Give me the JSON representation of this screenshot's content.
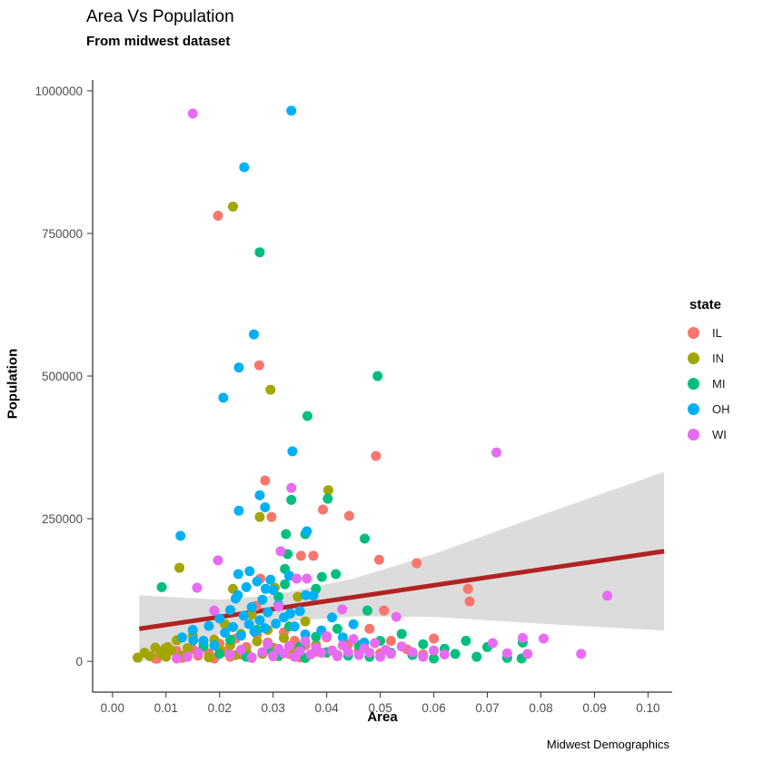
{
  "header": {
    "title": "Area Vs Population",
    "subtitle": "From midwest dataset"
  },
  "caption": "Midwest Demographics",
  "chart_data": {
    "type": "scatter",
    "title": "Area Vs Population",
    "subtitle": "From midwest dataset",
    "caption": "Midwest Demographics",
    "xlabel": "Area",
    "ylabel": "Population",
    "grid": "off",
    "xlim": [
      -0.0037,
      0.104
    ],
    "ylim": [
      -54000,
      1019000
    ],
    "x_ticks": [
      0.0,
      0.01,
      0.02,
      0.03,
      0.04,
      0.05,
      0.06,
      0.07,
      0.08,
      0.09,
      0.1
    ],
    "x_tick_labels": [
      "0.00",
      "0.01",
      "0.02",
      "0.03",
      "0.04",
      "0.05",
      "0.06",
      "0.07",
      "0.08",
      "0.09",
      "0.10"
    ],
    "y_ticks": [
      0,
      250000,
      500000,
      750000,
      1000000
    ],
    "y_tick_labels": [
      "0",
      "250000",
      "500000",
      "750000",
      "1000000"
    ],
    "axis_color": "#000000",
    "tick_label_color": "#4d4d4d",
    "legend": {
      "title": "state",
      "position": "right",
      "entries": [
        {
          "label": "IL",
          "color": "#F8766D"
        },
        {
          "label": "IN",
          "color": "#A3A500"
        },
        {
          "label": "MI",
          "color": "#00BF7D"
        },
        {
          "label": "OH",
          "color": "#00B0F6"
        },
        {
          "label": "WI",
          "color": "#E76BF3"
        }
      ]
    },
    "trend": {
      "type": "linear-smooth",
      "color": "#B22222",
      "width": 5,
      "x": [
        0.005,
        0.103
      ],
      "y": [
        57000,
        193000
      ],
      "ci_color": "#DCDCDC",
      "ci_x": [
        0.005,
        0.02,
        0.03,
        0.045,
        0.06,
        0.08,
        0.103
      ],
      "ci_upper": [
        116000,
        108000,
        116000,
        145000,
        188000,
        256000,
        332000
      ],
      "ci_lower": [
        -2000,
        48000,
        68000,
        79000,
        78000,
        66000,
        54000
      ]
    },
    "point_radius": 5.5,
    "series": [
      {
        "name": "IL",
        "color": "#F8766D",
        "points": [
          [
            0.0197,
            781000
          ],
          [
            0.0274,
            519000
          ],
          [
            0.0492,
            360000
          ],
          [
            0.0285,
            317000
          ],
          [
            0.0393,
            266000
          ],
          [
            0.0442,
            255000
          ],
          [
            0.0297,
            253000
          ],
          [
            0.0352,
            185000
          ],
          [
            0.0375,
            185000
          ],
          [
            0.0498,
            178000
          ],
          [
            0.0568,
            172000
          ],
          [
            0.0276,
            145000
          ],
          [
            0.0664,
            127000
          ],
          [
            0.0667,
            105000
          ],
          [
            0.0268,
            97000
          ],
          [
            0.0507,
            89000
          ],
          [
            0.008,
            5000
          ],
          [
            0.01,
            12000
          ],
          [
            0.012,
            18000
          ],
          [
            0.013,
            6000
          ],
          [
            0.015,
            21000
          ],
          [
            0.016,
            10000
          ],
          [
            0.017,
            35000
          ],
          [
            0.018,
            14000
          ],
          [
            0.019,
            5000
          ],
          [
            0.02,
            31000
          ],
          [
            0.021,
            17000
          ],
          [
            0.022,
            8000
          ],
          [
            0.023,
            40000
          ],
          [
            0.024,
            12000
          ],
          [
            0.025,
            25000
          ],
          [
            0.026,
            6000
          ],
          [
            0.027,
            47000
          ],
          [
            0.028,
            15000
          ],
          [
            0.029,
            33000
          ],
          [
            0.03,
            9000
          ],
          [
            0.031,
            20000
          ],
          [
            0.032,
            51000
          ],
          [
            0.033,
            13000
          ],
          [
            0.034,
            36000
          ],
          [
            0.035,
            7000
          ],
          [
            0.036,
            28000
          ],
          [
            0.038,
            17000
          ],
          [
            0.04,
            42000
          ],
          [
            0.042,
            11000
          ],
          [
            0.044,
            30000
          ],
          [
            0.046,
            19000
          ],
          [
            0.048,
            57000
          ],
          [
            0.05,
            14000
          ],
          [
            0.052,
            36000
          ],
          [
            0.055,
            21000
          ],
          [
            0.058,
            12000
          ],
          [
            0.06,
            40000
          ],
          [
            0.0083,
            4800
          ]
        ]
      },
      {
        "name": "IN",
        "color": "#A3A500",
        "points": [
          [
            0.0225,
            797000
          ],
          [
            0.0295,
            476000
          ],
          [
            0.0403,
            300000
          ],
          [
            0.0275,
            253000
          ],
          [
            0.0125,
            164000
          ],
          [
            0.0303,
            129000
          ],
          [
            0.0225,
            127000
          ],
          [
            0.0346,
            113000
          ],
          [
            0.0047,
            6400
          ],
          [
            0.006,
            15000
          ],
          [
            0.007,
            9000
          ],
          [
            0.008,
            24000
          ],
          [
            0.009,
            13000
          ],
          [
            0.0098,
            22000
          ],
          [
            0.0103,
            25000
          ],
          [
            0.011,
            19000
          ],
          [
            0.012,
            37000
          ],
          [
            0.013,
            10000
          ],
          [
            0.014,
            23000
          ],
          [
            0.015,
            45000
          ],
          [
            0.016,
            16000
          ],
          [
            0.017,
            30000
          ],
          [
            0.018,
            7000
          ],
          [
            0.019,
            38000
          ],
          [
            0.02,
            19000
          ],
          [
            0.021,
            65000
          ],
          [
            0.022,
            28000
          ],
          [
            0.023,
            11000
          ],
          [
            0.024,
            48000
          ],
          [
            0.025,
            17000
          ],
          [
            0.026,
            82000
          ],
          [
            0.027,
            35000
          ],
          [
            0.028,
            13000
          ],
          [
            0.029,
            55000
          ],
          [
            0.03,
            24000
          ],
          [
            0.031,
            9000
          ],
          [
            0.032,
            41000
          ],
          [
            0.034,
            19000
          ],
          [
            0.036,
            70000
          ],
          [
            0.038,
            29000
          ],
          [
            0.04,
            15000
          ],
          [
            0.01,
            8000
          ]
        ]
      },
      {
        "name": "MI",
        "color": "#00BF7D",
        "points": [
          [
            0.0275,
            717000
          ],
          [
            0.0495,
            500000
          ],
          [
            0.0364,
            430000
          ],
          [
            0.0402,
            285000
          ],
          [
            0.0334,
            283000
          ],
          [
            0.0324,
            223000
          ],
          [
            0.036,
            223000
          ],
          [
            0.0471,
            215000
          ],
          [
            0.0327,
            188000
          ],
          [
            0.0322,
            162000
          ],
          [
            0.0417,
            153000
          ],
          [
            0.0391,
            148000
          ],
          [
            0.0322,
            135000
          ],
          [
            0.0092,
            130000
          ],
          [
            0.038,
            127000
          ],
          [
            0.031,
            113000
          ],
          [
            0.0476,
            89000
          ],
          [
            0.017,
            26000
          ],
          [
            0.02,
            13000
          ],
          [
            0.022,
            38000
          ],
          [
            0.025,
            8000
          ],
          [
            0.027,
            55000
          ],
          [
            0.029,
            21000
          ],
          [
            0.031,
            10000
          ],
          [
            0.033,
            61000
          ],
          [
            0.035,
            25000
          ],
          [
            0.036,
            6000
          ],
          [
            0.038,
            43000
          ],
          [
            0.04,
            16000
          ],
          [
            0.042,
            57000
          ],
          [
            0.044,
            10000
          ],
          [
            0.046,
            28000
          ],
          [
            0.048,
            8000
          ],
          [
            0.05,
            36000
          ],
          [
            0.052,
            15000
          ],
          [
            0.054,
            48000
          ],
          [
            0.056,
            11000
          ],
          [
            0.058,
            30000
          ],
          [
            0.06,
            5000
          ],
          [
            0.062,
            22000
          ],
          [
            0.064,
            13000
          ],
          [
            0.066,
            36000
          ],
          [
            0.068,
            8000
          ],
          [
            0.07,
            25000
          ],
          [
            0.0737,
            6000
          ],
          [
            0.0764,
            5000
          ],
          [
            0.0766,
            33000
          ]
        ]
      },
      {
        "name": "OH",
        "color": "#00B0F6",
        "points": [
          [
            0.0334,
            965000
          ],
          [
            0.0246,
            866000
          ],
          [
            0.0264,
            573000
          ],
          [
            0.0236,
            515000
          ],
          [
            0.0207,
            462000
          ],
          [
            0.0336,
            368000
          ],
          [
            0.0275,
            291000
          ],
          [
            0.0285,
            270000
          ],
          [
            0.0236,
            264000
          ],
          [
            0.0363,
            228000
          ],
          [
            0.0127,
            220000
          ],
          [
            0.0256,
            158000
          ],
          [
            0.0235,
            153000
          ],
          [
            0.0295,
            143000
          ],
          [
            0.0286,
            127000
          ],
          [
            0.0234,
            116000
          ],
          [
            0.0361,
            116000
          ],
          [
            0.0332,
            84000
          ],
          [
            0.0151,
            37000
          ],
          [
            0.02,
            75000
          ],
          [
            0.021,
            50000
          ],
          [
            0.022,
            90000
          ],
          [
            0.0225,
            60000
          ],
          [
            0.023,
            110000
          ],
          [
            0.024,
            45000
          ],
          [
            0.0245,
            80000
          ],
          [
            0.025,
            130000
          ],
          [
            0.0255,
            65000
          ],
          [
            0.026,
            95000
          ],
          [
            0.0265,
            52000
          ],
          [
            0.027,
            140000
          ],
          [
            0.0275,
            72000
          ],
          [
            0.028,
            108000
          ],
          [
            0.0285,
            58000
          ],
          [
            0.029,
            86000
          ],
          [
            0.03,
            125000
          ],
          [
            0.0305,
            66000
          ],
          [
            0.031,
            99000
          ],
          [
            0.032,
            77000
          ],
          [
            0.033,
            150000
          ],
          [
            0.034,
            61000
          ],
          [
            0.035,
            88000
          ],
          [
            0.036,
            47000
          ],
          [
            0.0375,
            115000
          ],
          [
            0.039,
            54000
          ],
          [
            0.041,
            77000
          ],
          [
            0.043,
            42000
          ],
          [
            0.045,
            65000
          ],
          [
            0.047,
            33000
          ],
          [
            0.013,
            42000
          ],
          [
            0.015,
            55000
          ],
          [
            0.017,
            36000
          ],
          [
            0.018,
            62000
          ],
          [
            0.019,
            28000
          ]
        ]
      },
      {
        "name": "WI",
        "color": "#E76BF3",
        "points": [
          [
            0.015,
            960000
          ],
          [
            0.0717,
            366000
          ],
          [
            0.0334,
            304000
          ],
          [
            0.0314,
            193000
          ],
          [
            0.0197,
            177000
          ],
          [
            0.0344,
            145000
          ],
          [
            0.0363,
            145000
          ],
          [
            0.0158,
            129000
          ],
          [
            0.0924,
            115000
          ],
          [
            0.031,
            96000
          ],
          [
            0.0429,
            91000
          ],
          [
            0.019,
            89000
          ],
          [
            0.053,
            78000
          ],
          [
            0.022,
            12000
          ],
          [
            0.024,
            20000
          ],
          [
            0.026,
            7000
          ],
          [
            0.028,
            16000
          ],
          [
            0.029,
            30000
          ],
          [
            0.03,
            10000
          ],
          [
            0.031,
            22000
          ],
          [
            0.032,
            14000
          ],
          [
            0.033,
            27000
          ],
          [
            0.034,
            8000
          ],
          [
            0.035,
            18000
          ],
          [
            0.036,
            35000
          ],
          [
            0.037,
            12000
          ],
          [
            0.038,
            24000
          ],
          [
            0.039,
            15000
          ],
          [
            0.04,
            44000
          ],
          [
            0.041,
            19000
          ],
          [
            0.042,
            9000
          ],
          [
            0.043,
            28000
          ],
          [
            0.044,
            16000
          ],
          [
            0.045,
            39000
          ],
          [
            0.046,
            11000
          ],
          [
            0.047,
            23000
          ],
          [
            0.048,
            15000
          ],
          [
            0.049,
            32000
          ],
          [
            0.05,
            8000
          ],
          [
            0.051,
            20000
          ],
          [
            0.052,
            13000
          ],
          [
            0.054,
            26000
          ],
          [
            0.056,
            16000
          ],
          [
            0.058,
            8000
          ],
          [
            0.06,
            19000
          ],
          [
            0.062,
            12000
          ],
          [
            0.071,
            32000
          ],
          [
            0.0766,
            41000
          ],
          [
            0.0805,
            40000
          ],
          [
            0.0737,
            14000
          ],
          [
            0.0775,
            13000
          ],
          [
            0.0875,
            13000
          ],
          [
            0.014,
            8000
          ],
          [
            0.016,
            15000
          ],
          [
            0.012,
            5000
          ]
        ]
      }
    ]
  }
}
